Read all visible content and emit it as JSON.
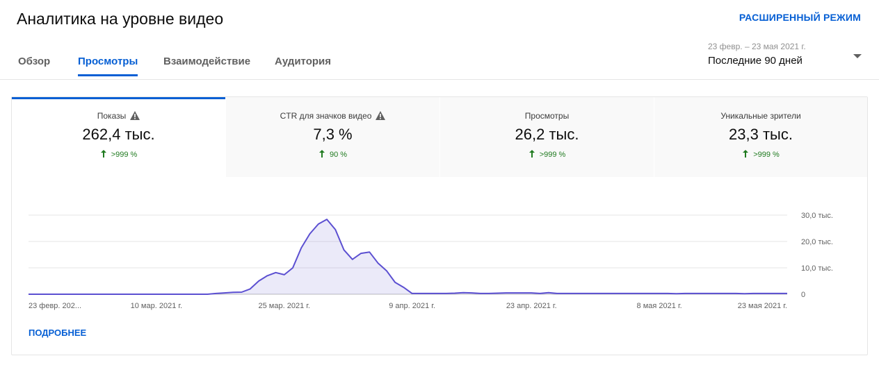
{
  "header": {
    "title": "Аналитика на уровне видео",
    "advanced_mode": "РАСШИРЕННЫЙ РЕЖИМ"
  },
  "tabs": [
    "Обзор",
    "Просмотры",
    "Взаимодействие",
    "Аудитория"
  ],
  "date": {
    "range": "23 февр. – 23 мая 2021 г.",
    "period": "Последние 90 дней"
  },
  "cards": [
    {
      "label": "Показы",
      "value": "262,4 тыс.",
      "change": ">999 %"
    },
    {
      "label": "CTR для значков видео",
      "value": "7,3 %",
      "change": "90 %"
    },
    {
      "label": "Просмотры",
      "value": "26,2 тыс.",
      "change": ">999 %"
    },
    {
      "label": "Уникальные зрители",
      "value": "23,3 тыс.",
      "change": ">999 %"
    }
  ],
  "chart": {
    "type": "area",
    "color": "#5b4fd1",
    "categories": [
      "23 февр. 202...",
      null,
      null,
      null,
      null,
      null,
      null,
      null,
      null,
      null,
      null,
      null,
      null,
      null,
      null,
      "10 мар. 2021 г.",
      null,
      null,
      null,
      null,
      null,
      null,
      null,
      null,
      null,
      null,
      null,
      null,
      null,
      null,
      "25 мар. 2021 г.",
      null,
      null,
      null,
      null,
      null,
      null,
      null,
      null,
      null,
      null,
      null,
      null,
      null,
      null,
      "9 апр. 2021 г.",
      null,
      null,
      null,
      null,
      null,
      null,
      null,
      null,
      null,
      null,
      null,
      null,
      null,
      "23 апр. 2021 г.",
      null,
      null,
      null,
      null,
      null,
      null,
      null,
      null,
      null,
      null,
      null,
      null,
      null,
      null,
      "8 мая 2021 г.",
      null,
      null,
      null,
      null,
      null,
      null,
      null,
      null,
      null,
      null,
      null,
      null,
      null,
      null,
      "23 мая 2021 г."
    ],
    "values": [
      0,
      0,
      0,
      0,
      0,
      0,
      0,
      0,
      0,
      0,
      0,
      0,
      0,
      0,
      0,
      0,
      0,
      0,
      0,
      0,
      0,
      0,
      300,
      500,
      700,
      800,
      2000,
      5000,
      7000,
      8200,
      7400,
      10000,
      17600,
      22900,
      26600,
      28400,
      24500,
      16800,
      13200,
      15500,
      16000,
      11800,
      8900,
      4500,
      2600,
      300,
      300,
      300,
      300,
      300,
      400,
      600,
      500,
      300,
      300,
      400,
      500,
      500,
      500,
      500,
      300,
      600,
      300,
      300,
      300,
      300,
      300,
      300,
      300,
      300,
      300,
      300,
      300,
      300,
      300,
      300,
      200,
      300,
      300,
      300,
      300,
      300,
      300,
      300,
      200,
      300,
      300,
      300,
      300,
      300
    ],
    "ylim": [
      0,
      30000
    ],
    "yticks": [
      0,
      {
        "value": 10000,
        "label": "10,0 тыс."
      },
      {
        "value": 20000,
        "label": "20,0 тыс."
      },
      {
        "value": 30000,
        "label": "30,0 тыс."
      }
    ],
    "grid": true
  },
  "footer": {
    "more": "ПОДРОБНЕЕ"
  }
}
